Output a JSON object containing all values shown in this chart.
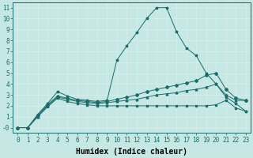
{
  "title": "",
  "xlabel": "Humidex (Indice chaleur)",
  "ylabel": "",
  "bg_color": "#c5e8e5",
  "line_color": "#1a6b6b",
  "grid_color": "#d8eeeb",
  "xlim": [
    -0.5,
    23.5
  ],
  "ylim": [
    -0.5,
    11.5
  ],
  "xticks": [
    0,
    1,
    2,
    3,
    4,
    5,
    6,
    7,
    8,
    9,
    10,
    11,
    12,
    13,
    14,
    15,
    16,
    17,
    18,
    19,
    20,
    21,
    22,
    23
  ],
  "yticks": [
    0,
    1,
    2,
    3,
    4,
    5,
    6,
    7,
    8,
    9,
    10,
    11
  ],
  "ytick_labels": [
    "-0",
    "1",
    "2",
    "3",
    "4",
    "5",
    "6",
    "7",
    "8",
    "9",
    "10",
    "11"
  ],
  "series": [
    {
      "x": [
        0,
        1,
        2,
        3,
        4,
        5,
        6,
        7,
        8,
        9,
        10,
        11,
        12,
        13,
        14,
        15,
        16,
        17,
        18,
        19,
        20,
        21,
        22,
        23
      ],
      "y": [
        0,
        0,
        1.2,
        2.2,
        3.3,
        2.9,
        2.6,
        2.5,
        2.4,
        2.5,
        6.2,
        7.5,
        8.7,
        10.0,
        11.0,
        11.0,
        8.8,
        7.3,
        6.6,
        5.0,
        4.0,
        2.8,
        2.2,
        1.5
      ],
      "marker": "*",
      "ms": 2.5
    },
    {
      "x": [
        0,
        1,
        2,
        3,
        4,
        5,
        6,
        7,
        8,
        9,
        10,
        11,
        12,
        13,
        14,
        15,
        16,
        17,
        18,
        19,
        20,
        21,
        22,
        23
      ],
      "y": [
        0,
        0,
        1.1,
        2.1,
        2.9,
        2.7,
        2.5,
        2.4,
        2.3,
        2.4,
        2.6,
        2.8,
        3.0,
        3.3,
        3.5,
        3.7,
        3.9,
        4.1,
        4.3,
        4.8,
        5.0,
        3.5,
        2.7,
        2.5
      ],
      "marker": "D",
      "ms": 2.0
    },
    {
      "x": [
        0,
        1,
        2,
        3,
        4,
        5,
        6,
        7,
        8,
        9,
        10,
        11,
        12,
        13,
        14,
        15,
        16,
        17,
        18,
        19,
        20,
        21,
        22,
        23
      ],
      "y": [
        0,
        0,
        1.0,
        2.0,
        2.8,
        2.6,
        2.4,
        2.3,
        2.2,
        2.3,
        2.4,
        2.5,
        2.6,
        2.8,
        3.0,
        3.1,
        3.2,
        3.4,
        3.5,
        3.7,
        4.0,
        3.0,
        2.5,
        2.5
      ],
      "marker": "^",
      "ms": 2.0
    },
    {
      "x": [
        0,
        1,
        2,
        3,
        4,
        5,
        6,
        7,
        8,
        9,
        10,
        11,
        12,
        13,
        14,
        15,
        16,
        17,
        18,
        19,
        20,
        21,
        22,
        23
      ],
      "y": [
        0,
        0,
        1.0,
        1.9,
        2.7,
        2.4,
        2.2,
        2.1,
        2.0,
        2.0,
        2.0,
        2.0,
        2.0,
        2.0,
        2.0,
        2.0,
        2.0,
        2.0,
        2.0,
        2.0,
        2.1,
        2.5,
        1.8,
        1.5
      ],
      "marker": "s",
      "ms": 2.0
    }
  ],
  "font_size": 7,
  "label_font_size": 7,
  "tick_font_size": 5.5
}
